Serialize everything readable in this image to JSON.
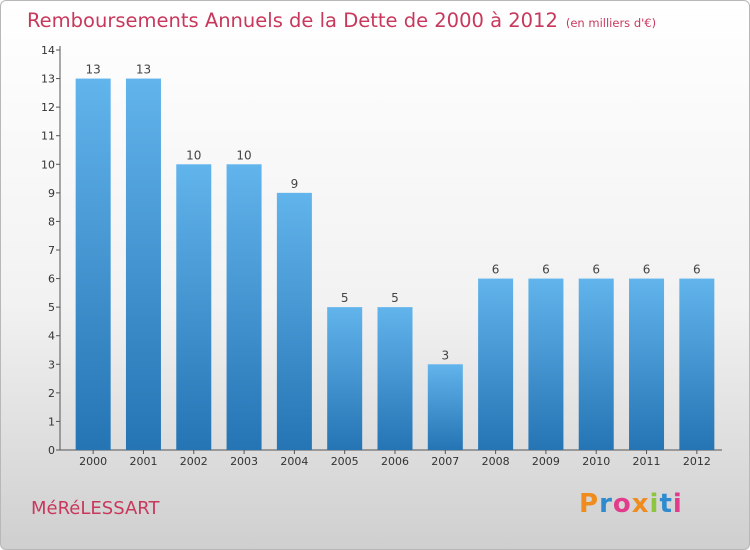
{
  "title": "Remboursements Annuels de la Dette de 2000 à 2012",
  "unit": "(en milliers d'€)",
  "commune": "MéRéLESSART",
  "logo": {
    "text": "Proxiti",
    "colors": [
      "#f08c1e",
      "#2e8bd0",
      "#e23b8c",
      "#f08c1e",
      "#8cc63f",
      "#2e8bd0",
      "#e23b8c"
    ]
  },
  "colors": {
    "bar_light": "#62b4ec",
    "bar_dark": "#2574b4",
    "accent": "#c8385c"
  },
  "chart_data": {
    "type": "bar",
    "title": "Remboursements Annuels de la Dette de 2000 à 2012",
    "categories": [
      "2000",
      "2001",
      "2002",
      "2003",
      "2004",
      "2005",
      "2006",
      "2007",
      "2008",
      "2009",
      "2010",
      "2011",
      "2012"
    ],
    "values": [
      13,
      13,
      10,
      10,
      9,
      5,
      5,
      3,
      6,
      6,
      6,
      6,
      6
    ],
    "data_labels": [
      "13",
      "13",
      "10",
      "10",
      "9",
      "5",
      "5",
      "3",
      "6",
      "6",
      "6",
      "6",
      "6"
    ],
    "y_ticks": [
      "0",
      "1",
      "2",
      "3",
      "4",
      "5",
      "6",
      "7",
      "8",
      "9",
      "10",
      "11",
      "12",
      "13",
      "14"
    ],
    "xlabel": "",
    "ylabel": "",
    "ylim": [
      0,
      14
    ],
    "grid": false,
    "legend": "none"
  }
}
